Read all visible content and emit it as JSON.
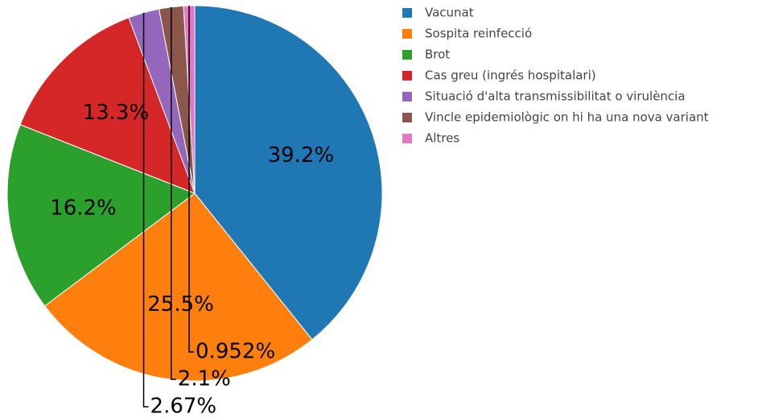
{
  "chart_data": {
    "type": "pie",
    "categories": [
      "Vacunat",
      "Sospita reinfecció",
      "Brot",
      "Cas greu (ingrés hospitalari)",
      "Situació d'alta transmissibilitat o virulència",
      "Vincle epidemiològic on hi ha una nova variant",
      "Altres"
    ],
    "values": [
      39.2,
      25.5,
      16.2,
      13.3,
      2.67,
      2.1,
      0.952
    ],
    "value_labels": [
      "39.2%",
      "25.5%",
      "16.2%",
      "13.3%",
      "2.67%",
      "2.1%",
      "0.952%"
    ],
    "colors": [
      "#1f77b4",
      "#ff7f0e",
      "#2ca02c",
      "#d62728",
      "#9467bd",
      "#8c564b",
      "#e377c2"
    ],
    "legend": "top-right"
  }
}
